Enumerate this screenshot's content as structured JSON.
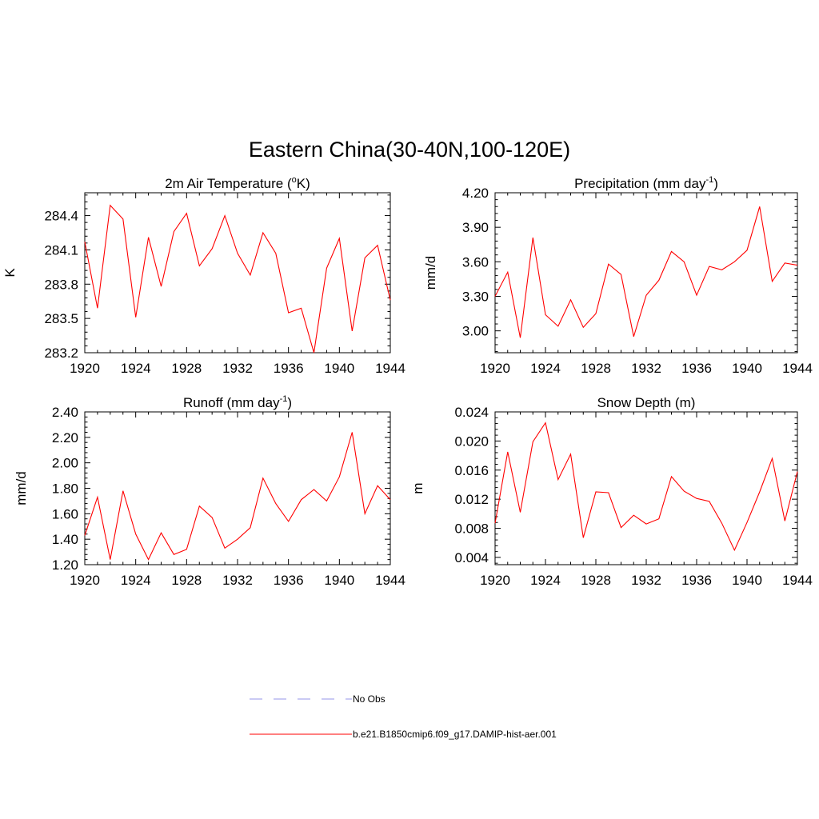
{
  "title": "Eastern China(30-40N,100-120E)",
  "chart_data": [
    {
      "type": "line",
      "title": "2m Air Temperature (",
      "title_sup": "o",
      "title_tail": "K)",
      "ylabel": "K",
      "xlim": [
        1920,
        1944
      ],
      "ylim": [
        283.2,
        284.6
      ],
      "xticks": [
        1920,
        1924,
        1928,
        1932,
        1936,
        1940,
        1944
      ],
      "yticks": [
        "283.2",
        "283.5",
        "283.8",
        "284.1",
        "284.4"
      ],
      "x": [
        1920,
        1921,
        1922,
        1923,
        1924,
        1925,
        1926,
        1927,
        1928,
        1929,
        1930,
        1931,
        1932,
        1933,
        1934,
        1935,
        1936,
        1937,
        1938,
        1939,
        1940,
        1941,
        1942,
        1943,
        1944
      ],
      "series": [
        {
          "color": "#ff0000",
          "values": [
            284.17,
            283.59,
            284.49,
            284.37,
            283.51,
            284.21,
            283.78,
            284.26,
            284.42,
            283.96,
            284.11,
            284.4,
            284.07,
            283.88,
            284.25,
            284.07,
            283.55,
            283.59,
            283.2,
            283.94,
            284.2,
            283.39,
            284.03,
            284.14,
            283.66
          ]
        }
      ]
    },
    {
      "type": "line",
      "title": "Precipitation (mm day",
      "title_sup": "-1",
      "title_tail": ")",
      "ylabel": "mm/d",
      "xlim": [
        1920,
        1944
      ],
      "ylim": [
        2.81,
        4.2
      ],
      "xticks": [
        1920,
        1924,
        1928,
        1932,
        1936,
        1940,
        1944
      ],
      "yticks": [
        "3.00",
        "3.30",
        "3.60",
        "3.90",
        "4.20"
      ],
      "x": [
        1920,
        1921,
        1922,
        1923,
        1924,
        1925,
        1926,
        1927,
        1928,
        1929,
        1930,
        1931,
        1932,
        1933,
        1934,
        1935,
        1936,
        1937,
        1938,
        1939,
        1940,
        1941,
        1942,
        1943,
        1944
      ],
      "series": [
        {
          "color": "#ff0000",
          "values": [
            3.3,
            3.51,
            2.94,
            3.81,
            3.14,
            3.04,
            3.27,
            3.03,
            3.15,
            3.58,
            3.49,
            2.95,
            3.31,
            3.44,
            3.69,
            3.6,
            3.31,
            3.56,
            3.53,
            3.6,
            3.7,
            4.08,
            3.43,
            3.59,
            3.57
          ]
        }
      ]
    },
    {
      "type": "line",
      "title": "Runoff (mm day",
      "title_sup": "-1",
      "title_tail": ")",
      "ylabel": "mm/d",
      "xlim": [
        1920,
        1944
      ],
      "ylim": [
        1.2,
        2.4
      ],
      "xticks": [
        1920,
        1924,
        1928,
        1932,
        1936,
        1940,
        1944
      ],
      "yticks": [
        "1.20",
        "1.40",
        "1.60",
        "1.80",
        "2.00",
        "2.20",
        "2.40"
      ],
      "x": [
        1920,
        1921,
        1922,
        1923,
        1924,
        1925,
        1926,
        1927,
        1928,
        1929,
        1930,
        1931,
        1932,
        1933,
        1934,
        1935,
        1936,
        1937,
        1938,
        1939,
        1940,
        1941,
        1942,
        1943,
        1944
      ],
      "series": [
        {
          "color": "#ff0000",
          "values": [
            1.43,
            1.73,
            1.24,
            1.78,
            1.44,
            1.24,
            1.45,
            1.28,
            1.32,
            1.66,
            1.57,
            1.33,
            1.4,
            1.49,
            1.88,
            1.68,
            1.54,
            1.71,
            1.79,
            1.7,
            1.89,
            2.24,
            1.6,
            1.82,
            1.71
          ]
        }
      ]
    },
    {
      "type": "line",
      "title": "Snow Depth (m)",
      "title_sup": "",
      "title_tail": "",
      "ylabel": "m",
      "xlim": [
        1920,
        1944
      ],
      "ylim": [
        0.003,
        0.024
      ],
      "xticks": [
        1920,
        1924,
        1928,
        1932,
        1936,
        1940,
        1944
      ],
      "yticks": [
        "0.004",
        "0.008",
        "0.012",
        "0.016",
        "0.020",
        "0.024"
      ],
      "x": [
        1920,
        1921,
        1922,
        1923,
        1924,
        1925,
        1926,
        1927,
        1928,
        1929,
        1930,
        1931,
        1932,
        1933,
        1934,
        1935,
        1936,
        1937,
        1938,
        1939,
        1940,
        1941,
        1942,
        1943,
        1944
      ],
      "series": [
        {
          "color": "#ff0000",
          "values": [
            0.0087,
            0.0185,
            0.0102,
            0.0199,
            0.0225,
            0.0147,
            0.0182,
            0.0067,
            0.013,
            0.0129,
            0.0081,
            0.0098,
            0.0086,
            0.0093,
            0.0151,
            0.0131,
            0.0121,
            0.0117,
            0.0087,
            0.005,
            0.0088,
            0.013,
            0.0176,
            0.009,
            0.0158
          ]
        }
      ]
    }
  ],
  "legend": [
    {
      "label": "No Obs",
      "color": "#aaaaee",
      "dash": true
    },
    {
      "label": "b.e21.B1850cmip6.f09_g17.DAMIP-hist-aer.001",
      "color": "#ff0000",
      "dash": false
    }
  ]
}
